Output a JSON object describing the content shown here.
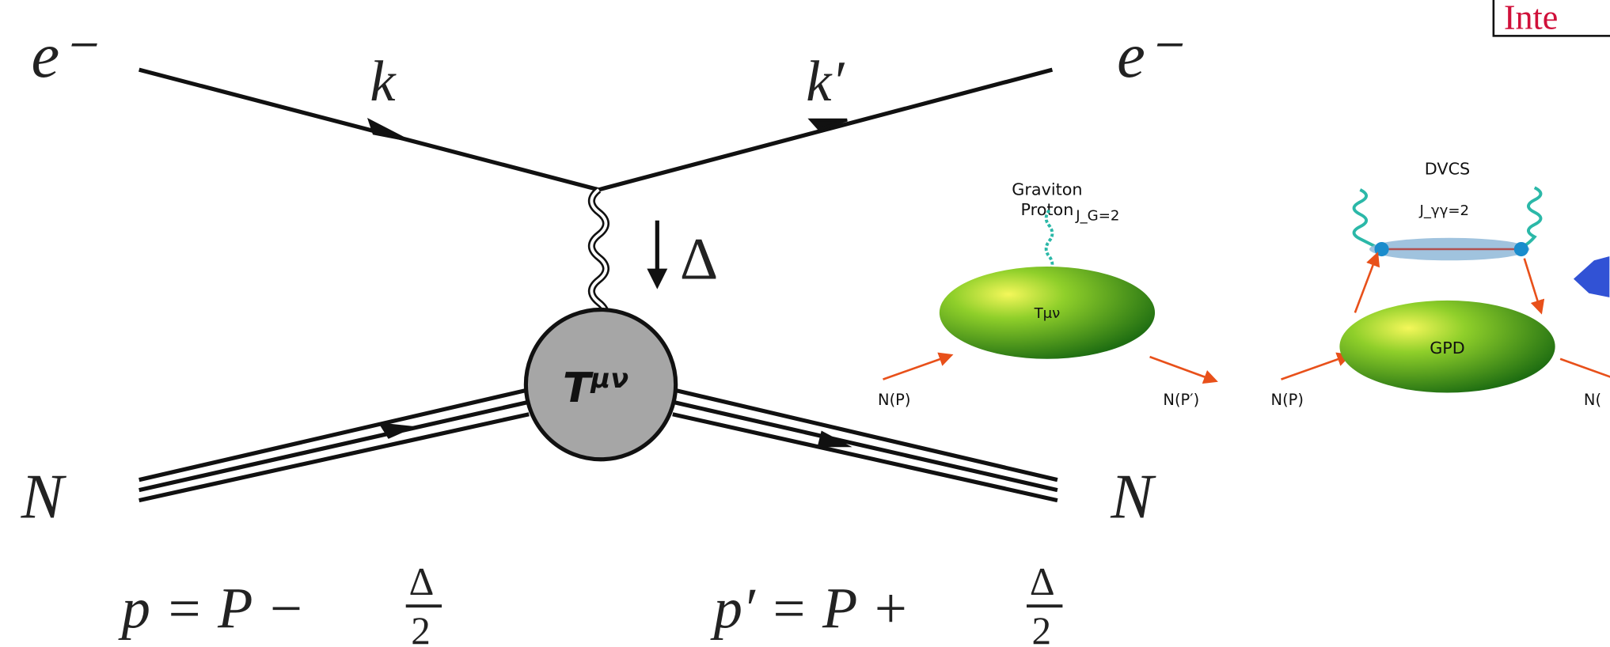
{
  "corner_label": "Inte",
  "feynman": {
    "electron_in": "e⁻",
    "electron_out": "e⁻",
    "k": "k",
    "k_prime": "k′",
    "delta": "Δ",
    "vertex": {
      "base": "T",
      "sup": "μν"
    },
    "nucleon_in": "N",
    "nucleon_out": "N",
    "p_formula": {
      "lhs": "p = P − ",
      "numerator": "Δ",
      "denominator": "2"
    },
    "p_prime_formula": {
      "lhs": "p′ = P + ",
      "numerator": "Δ",
      "denominator": "2"
    }
  },
  "graviton_panel": {
    "title": [
      "Graviton",
      "Proton"
    ],
    "spin": "J_G=2",
    "blob": "Tμν",
    "in": "N(P)",
    "out": "N(P′)"
  },
  "dvcs_panel": {
    "title": "DVCS",
    "spin": "J_γγ=2",
    "blob": "GPD",
    "in": "N(P)",
    "out": "N("
  }
}
